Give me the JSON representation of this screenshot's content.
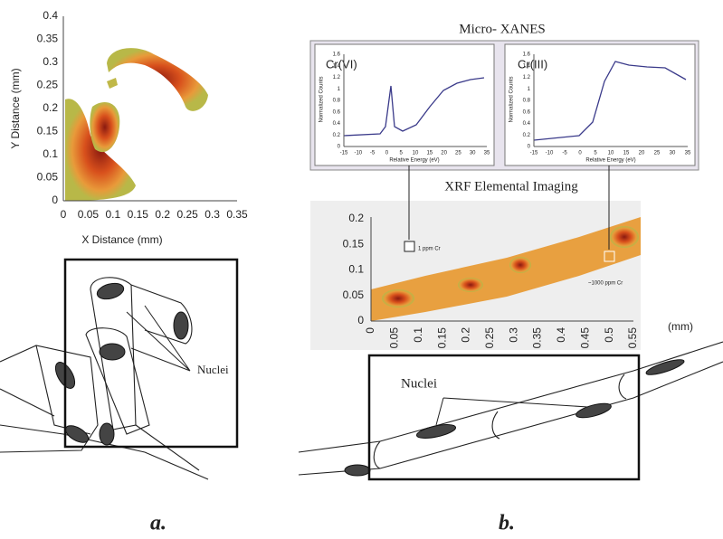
{
  "panel_a": {
    "map": {
      "xlabel": "X Distance (mm)",
      "ylabel": "Y Distance (mm)",
      "xticks": [
        0,
        0.05,
        0.1,
        0.15,
        0.2,
        0.25,
        0.3,
        0.35
      ],
      "yticks": [
        0,
        0.05,
        0.1,
        0.15,
        0.2,
        0.25,
        0.3,
        0.35,
        0.4
      ]
    },
    "drawing": {
      "label": "Nuclei"
    },
    "caption": "a."
  },
  "panel_b": {
    "xanes": {
      "title": "Micro- XANES",
      "ylabel": "Normalized Counts",
      "xlabel": "Relative Energy (eV)",
      "yticks": [
        0,
        0.2,
        0.4,
        0.6,
        0.8,
        1,
        1.2,
        1.4,
        1.6
      ],
      "xticks": [
        -15,
        -10,
        -5,
        0,
        5,
        10,
        15,
        20,
        25,
        30,
        35
      ],
      "spectra": [
        {
          "label": "Cr(VI)"
        },
        {
          "label": "Cr(III)"
        }
      ]
    },
    "xrf": {
      "title": "XRF Elemental Imaging",
      "yticks": [
        0,
        0.05,
        0.1,
        0.15,
        0.2
      ],
      "xticks": [
        0,
        0.05,
        0.1,
        0.15,
        0.2,
        0.25,
        0.3,
        0.35,
        0.4,
        0.45,
        0.5,
        0.55
      ],
      "unit": "(mm)",
      "annotations": [
        "1 ppm Cr",
        "~1000 ppm Cr"
      ]
    },
    "drawing": {
      "label": "Nuclei"
    },
    "caption": "b."
  }
}
